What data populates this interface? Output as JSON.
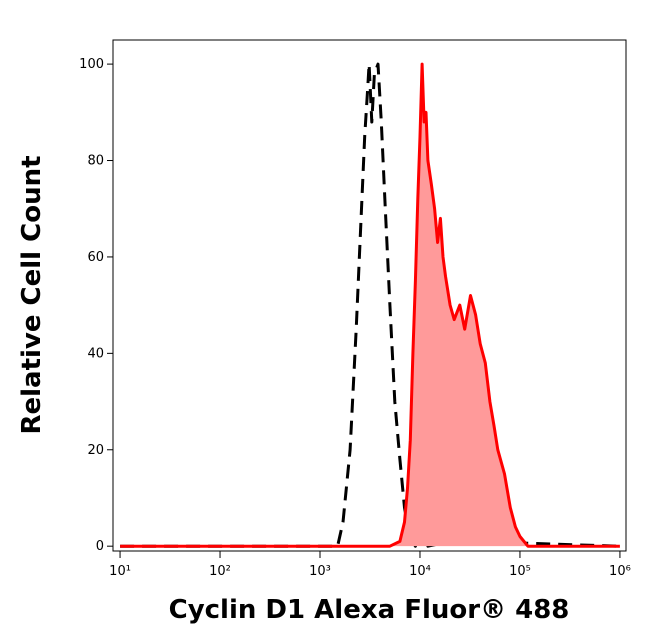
{
  "chart_data": {
    "type": "histogram-overlay",
    "x_label": "Cyclin D1 Alexa Fluor® 488",
    "y_label": "Relative Cell Count",
    "xscale": "log",
    "xlim": [
      8.5,
      1150000
    ],
    "ylim": [
      -1,
      105
    ],
    "xticks": [
      {
        "value": 10,
        "label": "10¹"
      },
      {
        "value": 100,
        "label": "10²"
      },
      {
        "value": 1000,
        "label": "10³"
      },
      {
        "value": 10000,
        "label": "10⁴"
      },
      {
        "value": 100000,
        "label": "10⁵"
      },
      {
        "value": 1000000,
        "label": "10⁶"
      }
    ],
    "yticks": [
      0,
      20,
      40,
      60,
      80,
      100
    ],
    "series": [
      {
        "color": "#000000",
        "dash": true,
        "x": [
          10,
          1500,
          1700,
          2000,
          2300,
          2600,
          2800,
          3000,
          3100,
          3300,
          3500,
          3800,
          4100,
          4500,
          5000,
          5600,
          6300,
          7000,
          7900,
          9000,
          10500,
          12000,
          20000,
          30000,
          1000000
        ],
        "values": [
          0,
          0,
          5,
          20,
          45,
          70,
          85,
          95,
          100,
          88,
          98,
          100,
          88,
          70,
          50,
          30,
          18,
          8,
          2,
          0,
          4,
          0,
          1,
          1,
          0
        ]
      },
      {
        "color": "#ff0000",
        "fill": "#ff9a9a",
        "dash": false,
        "x": [
          10,
          5000,
          6300,
          7000,
          7500,
          8000,
          8500,
          9000,
          9500,
          10000,
          10500,
          11000,
          11500,
          12000,
          13000,
          14000,
          15000,
          16000,
          17000,
          18000,
          20000,
          22000,
          25000,
          28000,
          32000,
          36000,
          40000,
          45000,
          50000,
          55000,
          60000,
          70000,
          80000,
          90000,
          100000,
          120000,
          1000000
        ],
        "values": [
          0,
          0,
          1,
          5,
          12,
          22,
          40,
          55,
          72,
          85,
          100,
          88,
          90,
          80,
          75,
          70,
          63,
          68,
          60,
          56,
          50,
          47,
          50,
          45,
          52,
          48,
          42,
          38,
          30,
          25,
          20,
          15,
          8,
          4,
          2,
          0,
          0
        ]
      }
    ]
  }
}
